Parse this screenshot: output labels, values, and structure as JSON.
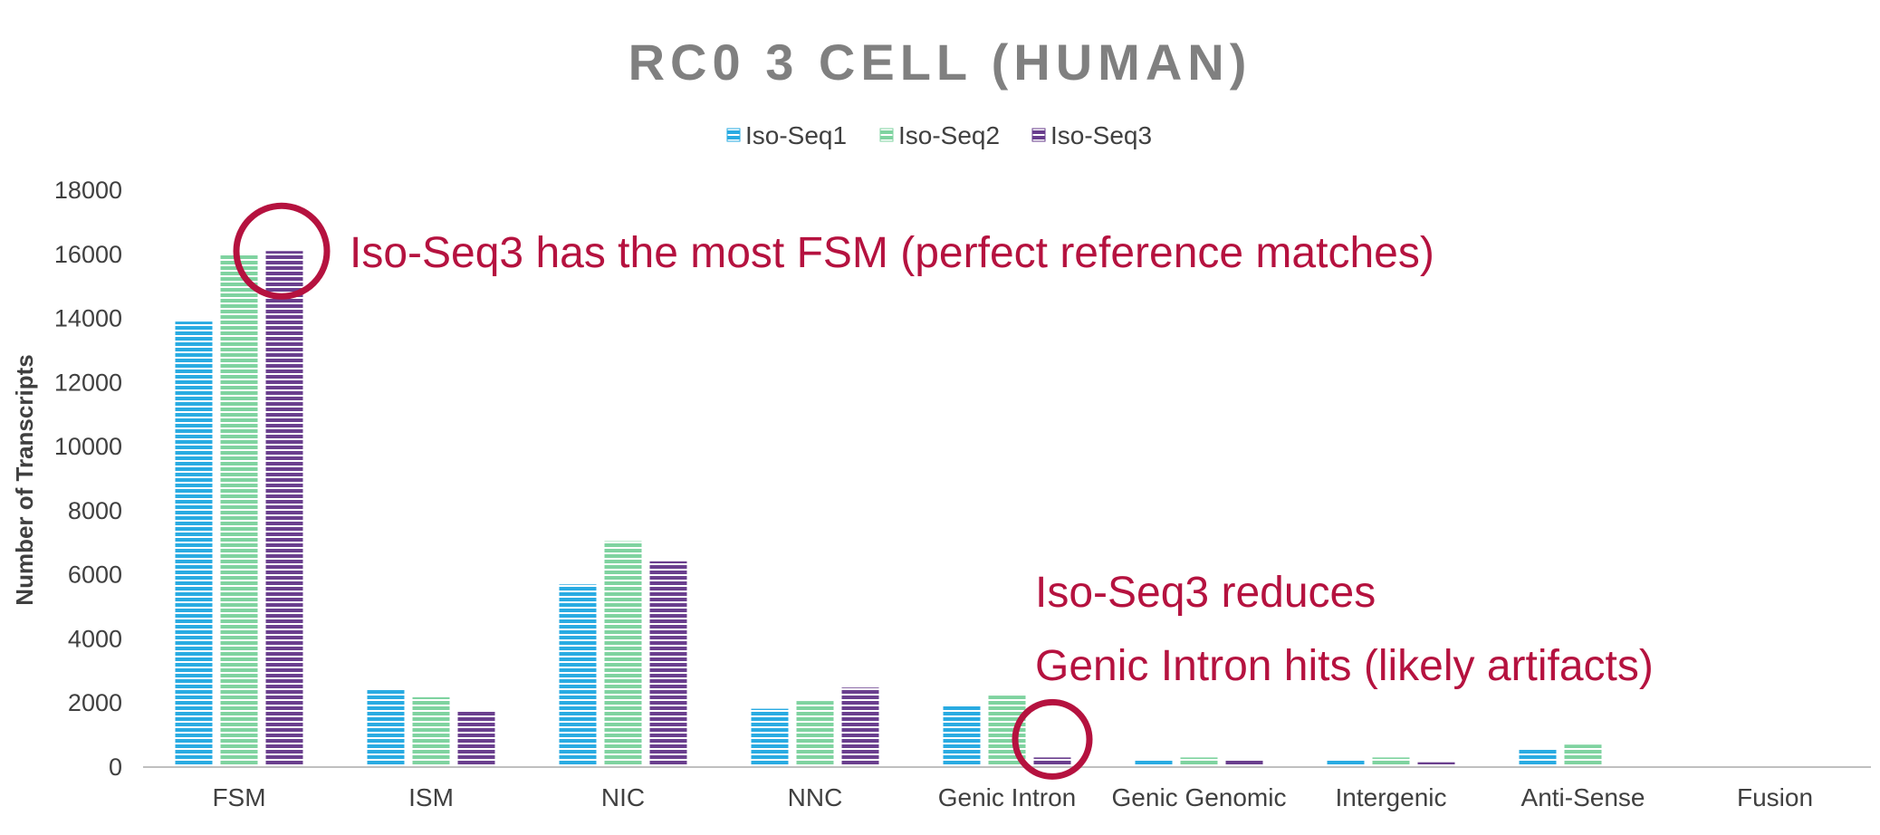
{
  "chart_data": {
    "type": "bar",
    "title": "RC0 3 CELL (HUMAN)",
    "ylabel": "Number of Transcripts",
    "xlabel": "",
    "ylim": [
      0,
      18000
    ],
    "yticks": [
      0,
      2000,
      4000,
      6000,
      8000,
      10000,
      12000,
      14000,
      16000,
      18000
    ],
    "categories": [
      "FSM",
      "ISM",
      "NIC",
      "NNC",
      "Genic Intron",
      "Genic Genomic",
      "Intergenic",
      "Anti-Sense",
      "Fusion"
    ],
    "series": [
      {
        "name": "Iso-Seq1",
        "color": "#29ABE2",
        "values": [
          13900,
          2450,
          5700,
          1820,
          1950,
          250,
          250,
          580,
          0
        ]
      },
      {
        "name": "Iso-Seq2",
        "color": "#7FD3A0",
        "values": [
          16000,
          2180,
          7050,
          2060,
          2230,
          300,
          300,
          700,
          0
        ]
      },
      {
        "name": "Iso-Seq3",
        "color": "#6A3F8E",
        "values": [
          16100,
          1780,
          6420,
          2480,
          300,
          200,
          150,
          0,
          0
        ]
      }
    ],
    "legend": "top-center",
    "grid": false,
    "annotations": [
      {
        "text": "Iso-Seq3 has the most FSM (perfect reference matches)",
        "color": "#B5123F"
      },
      {
        "text": "Iso-Seq3 reduces",
        "color": "#B5123F"
      },
      {
        "text": "Genic Intron hits (likely artifacts)",
        "color": "#B5123F"
      }
    ],
    "highlight_circles": [
      {
        "category": "FSM",
        "series": "Iso-Seq3",
        "color": "#B5123F"
      },
      {
        "category": "Genic Intron",
        "series": "Iso-Seq3",
        "color": "#B5123F"
      }
    ]
  },
  "title_color": "#808080",
  "axis_color": "#BFBFBF"
}
